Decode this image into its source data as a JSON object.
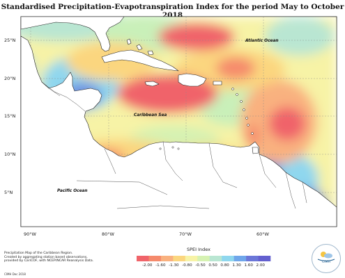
{
  "title": "Standardised Precipitation-Evapotranspiration Index for the period May to October 2018",
  "map": {
    "labels": {
      "atlantic": "Atlantic Ocean",
      "caribbean": "Caribbean Sea",
      "pacific": "Pacific Ocean"
    },
    "latitude_labels": [
      "25°N",
      "20°N",
      "15°N",
      "10°N",
      "5°N"
    ],
    "longitude_labels": [
      "90°W",
      "80°W",
      "70°W",
      "60°W"
    ]
  },
  "legend": {
    "title": "SPEI Index",
    "ticks": [
      "-2.00",
      "-1.60",
      "-1.30",
      "-0.80",
      "-0.50",
      "0.50",
      "0.80",
      "1.30",
      "1.60",
      "2.00"
    ],
    "colors": [
      "#f0646a",
      "#f58a6c",
      "#f9b17f",
      "#fbd67f",
      "#f7f3a6",
      "#d6f2b2",
      "#b9e6d2",
      "#8fd7ee",
      "#6fa6ea",
      "#6b77d8",
      "#6360cf"
    ]
  },
  "credit": {
    "line1": "Precipitation Map of the Caribbean Region.",
    "line2": "Created by aggregating station based observations,",
    "line3": "provided by CariCOF, with NCEP/NCAR Reanalysis Data.",
    "date": "CIMH Dec 2018"
  },
  "logo": {
    "text": "CIMH"
  }
}
